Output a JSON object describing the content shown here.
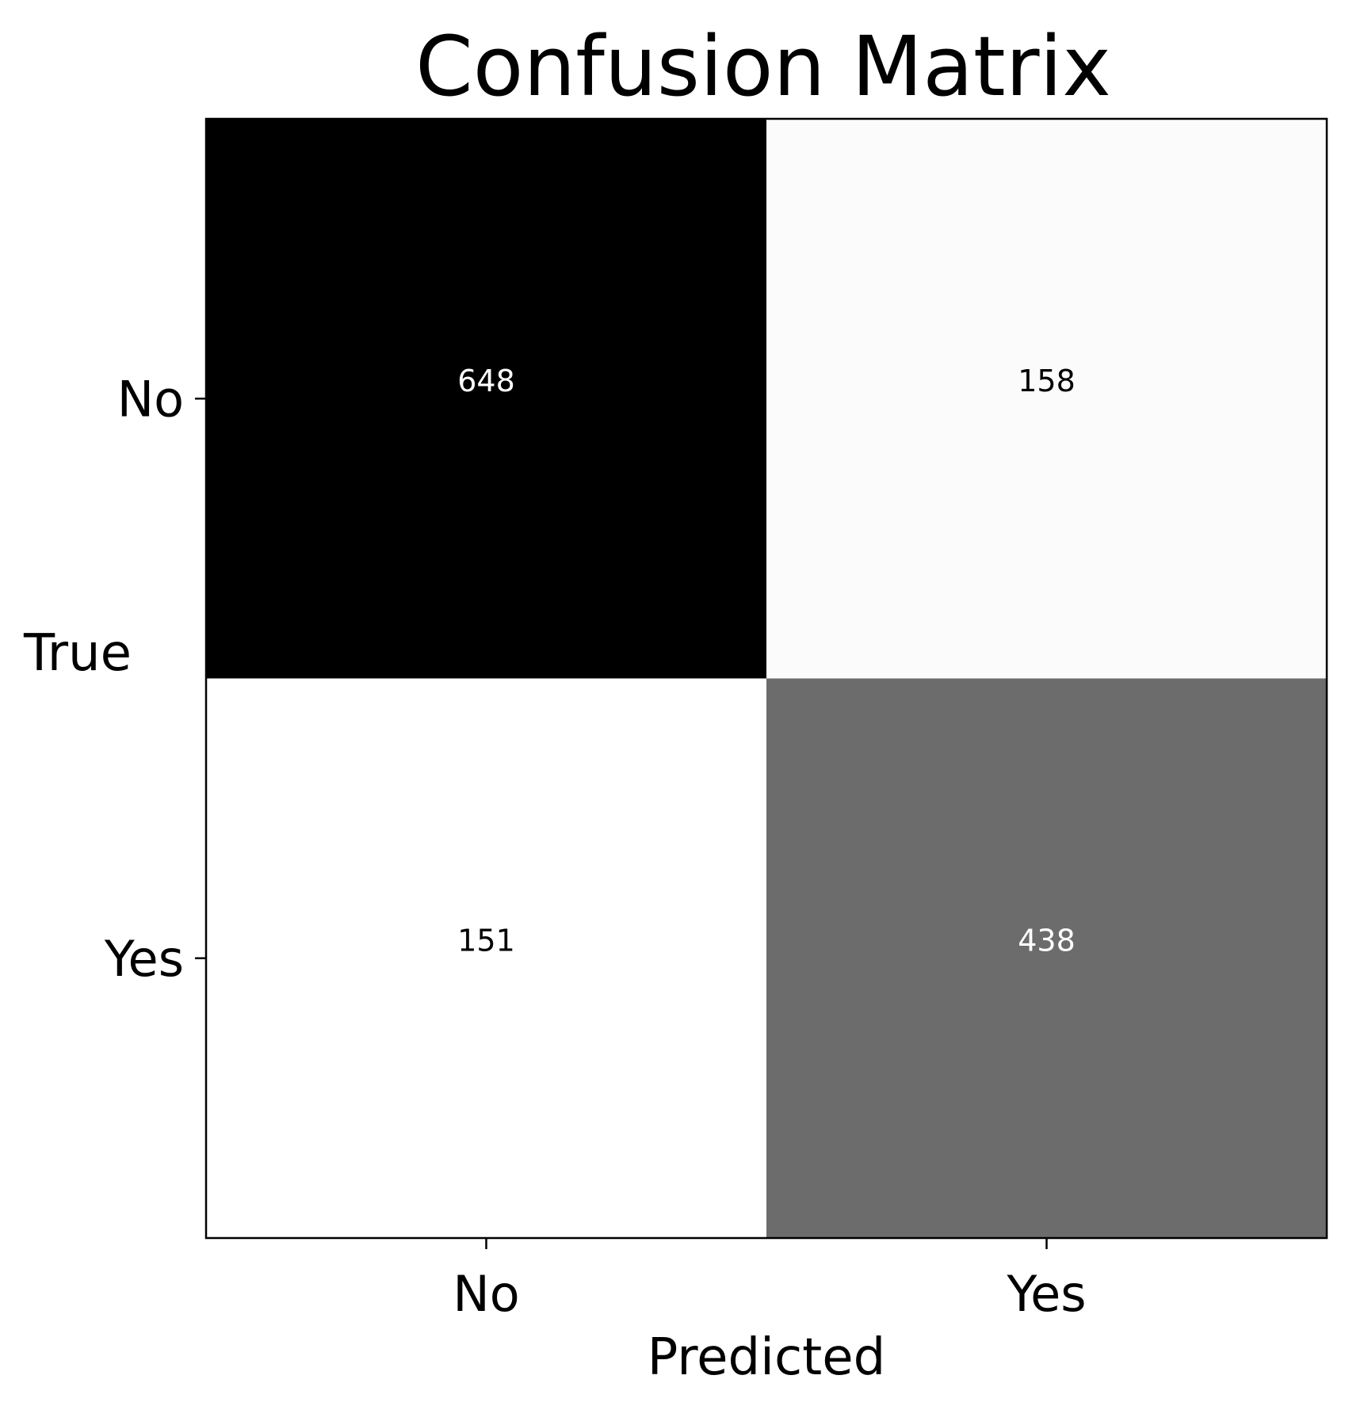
{
  "chart_data": {
    "type": "heatmap",
    "title": "Confusion Matrix",
    "xlabel": "Predicted",
    "ylabel": "True",
    "x_categories": [
      "No",
      "Yes"
    ],
    "y_categories": [
      "No",
      "Yes"
    ],
    "values": [
      [
        648,
        158
      ],
      [
        151,
        438
      ]
    ],
    "colormap": "gray_r",
    "colors": {
      "high": "#000000",
      "low": "#ffffff",
      "text_on_dark": "#ffffff",
      "text_on_light": "#000000",
      "frame": "#000000"
    },
    "grid": false,
    "legend": "none"
  }
}
